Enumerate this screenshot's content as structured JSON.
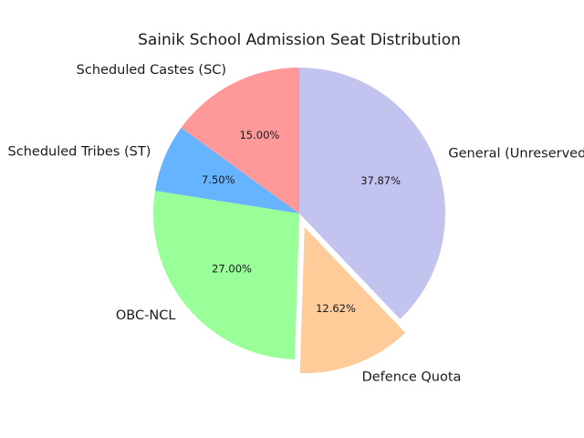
{
  "chart_data": {
    "type": "pie",
    "title": "Sainik School Admission Seat Distribution",
    "slices": [
      {
        "label": "General (Unreserved)",
        "value": 37.87,
        "pct_label": "37.87%",
        "color": "#c3c3f0",
        "exploded": false
      },
      {
        "label": "Defence Quota",
        "value": 12.62,
        "pct_label": "12.62%",
        "color": "#ffcc99",
        "exploded": true
      },
      {
        "label": "OBC-NCL",
        "value": 27.0,
        "pct_label": "27.00%",
        "color": "#99ff99",
        "exploded": false
      },
      {
        "label": "Scheduled Tribes (ST)",
        "value": 7.5,
        "pct_label": "7.50%",
        "color": "#66b3ff",
        "exploded": false
      },
      {
        "label": "Scheduled Castes (SC)",
        "value": 15.0,
        "pct_label": "15.00%",
        "color": "#ff9999",
        "exploded": false
      }
    ],
    "start_angle_deg": 90,
    "direction": "clockwise",
    "legend": "none"
  }
}
